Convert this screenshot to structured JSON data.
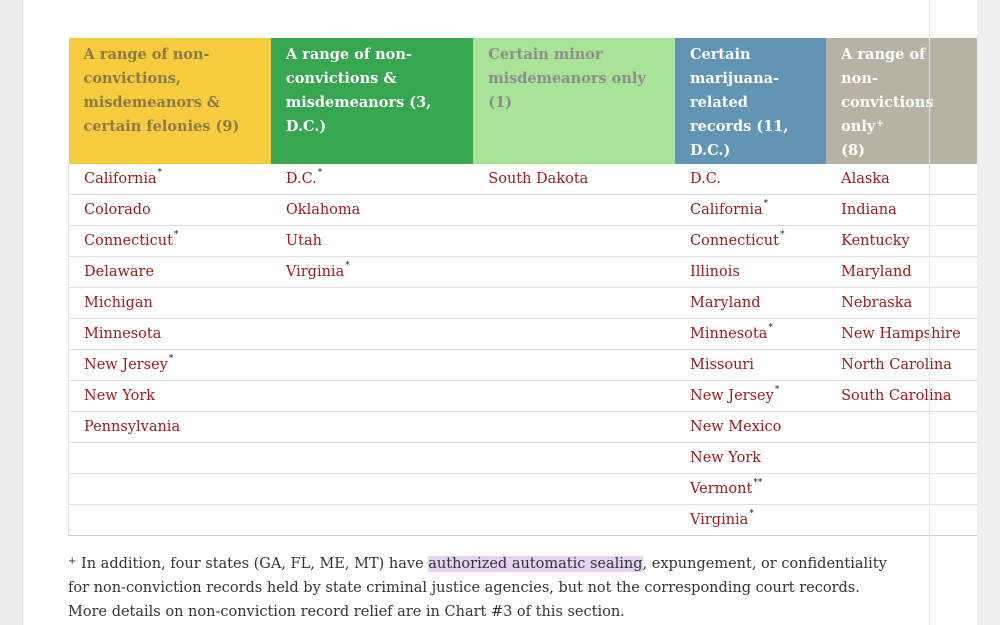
{
  "table": {
    "headers": [
      {
        "text": "A range of non-convictions, misdemeanors & certain felonies (9)",
        "mark": ""
      },
      {
        "text": "A range of non-convictions & misdemeanors (3, D.C.)",
        "mark": ""
      },
      {
        "text": "Certain minor misdemeanors only (1)",
        "mark": ""
      },
      {
        "text": "Certain marijuana-related records (11, D.C.)",
        "mark": ""
      },
      {
        "text": "A range of non-convictions only",
        "count": "(8)",
        "mark": "+"
      }
    ],
    "columns": [
      [
        {
          "name": "California",
          "mark": "*"
        },
        {
          "name": "Colorado",
          "mark": ""
        },
        {
          "name": "Connecticut",
          "mark": "*"
        },
        {
          "name": "Delaware",
          "mark": ""
        },
        {
          "name": "Michigan",
          "mark": ""
        },
        {
          "name": "Minnesota",
          "mark": ""
        },
        {
          "name": "New Jersey",
          "mark": "*"
        },
        {
          "name": "New York",
          "mark": ""
        },
        {
          "name": "Pennsylvania",
          "mark": ""
        }
      ],
      [
        {
          "name": "D.C.",
          "mark": "*"
        },
        {
          "name": "Oklahoma",
          "mark": ""
        },
        {
          "name": "Utah",
          "mark": ""
        },
        {
          "name": "Virginia",
          "mark": "*"
        }
      ],
      [
        {
          "name": "South Dakota",
          "mark": ""
        }
      ],
      [
        {
          "name": "D.C.",
          "mark": ""
        },
        {
          "name": "California",
          "mark": "*"
        },
        {
          "name": "Connecticut",
          "mark": "*"
        },
        {
          "name": "Illinois",
          "mark": ""
        },
        {
          "name": "Maryland",
          "mark": ""
        },
        {
          "name": "Minnesota",
          "mark": "*"
        },
        {
          "name": "Missouri",
          "mark": ""
        },
        {
          "name": "New Jersey",
          "mark": "*"
        },
        {
          "name": "New Mexico",
          "mark": ""
        },
        {
          "name": "New York",
          "mark": ""
        },
        {
          "name": "Vermont",
          "mark": "**"
        },
        {
          "name": "Virginia",
          "mark": "*"
        }
      ],
      [
        {
          "name": "Alaska",
          "mark": ""
        },
        {
          "name": "Indiana",
          "mark": ""
        },
        {
          "name": "Kentucky",
          "mark": ""
        },
        {
          "name": "Maryland",
          "mark": ""
        },
        {
          "name": "Nebraska",
          "mark": ""
        },
        {
          "name": "New Hampshire",
          "mark": ""
        },
        {
          "name": "North Carolina",
          "mark": ""
        },
        {
          "name": "South Carolina",
          "mark": ""
        }
      ]
    ]
  },
  "footnote": {
    "mark": "+",
    "before": " In addition, four states (GA, FL, ME, MT) have ",
    "highlight": "authorized automatic sealing",
    "after": ", expungement, or confidentiality for non-conviction records held by state criminal justice agencies, but not the corresponding court records. More details on non-conviction record relief are in Chart #3 of this section."
  }
}
